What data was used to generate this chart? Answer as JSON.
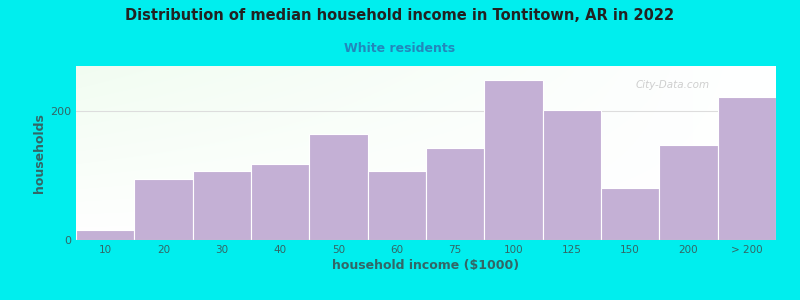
{
  "title": "Distribution of median household income in Tontitown, AR in 2022",
  "subtitle": "White residents",
  "xlabel": "household income ($1000)",
  "ylabel": "households",
  "background_outer": "#00EEEE",
  "bar_color": "#C4B0D5",
  "bar_edge_color": "#ffffff",
  "title_color": "#222222",
  "subtitle_color": "#2288bb",
  "axis_label_color": "#336666",
  "tick_label_color": "#336666",
  "watermark": "City-Data.com",
  "categories": [
    "10",
    "20",
    "30",
    "40",
    "50",
    "60",
    "75",
    "100",
    "125",
    "150",
    "200",
    "> 200"
  ],
  "values": [
    15,
    95,
    107,
    118,
    165,
    107,
    142,
    248,
    202,
    80,
    148,
    222
  ],
  "ylim": [
    0,
    270
  ],
  "yticks": [
    0,
    200
  ],
  "bar_width": 1.0
}
